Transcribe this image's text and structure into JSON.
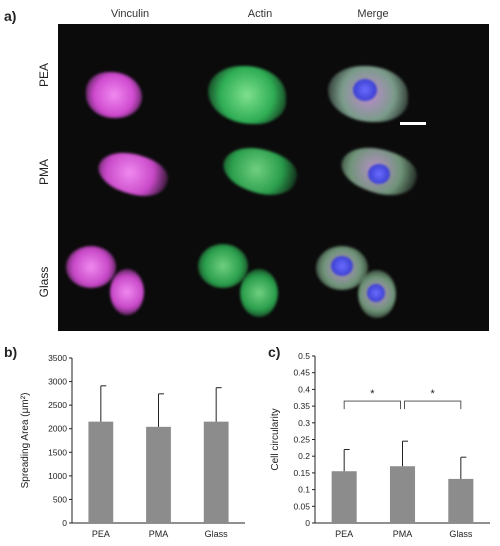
{
  "panel_a": {
    "letter": "a)",
    "columns": [
      "Vinculin",
      "Actin",
      "Merge"
    ],
    "rows": [
      "PEA",
      "PMA",
      "Glass"
    ],
    "colors": {
      "vinculin": "#d84fd8",
      "actin": "#2fbf5a",
      "nucleus": "#4a4cf0",
      "background": "#0b0b0b"
    }
  },
  "panel_b": {
    "letter": "b)"
  },
  "panel_c": {
    "letter": "c)"
  },
  "chart_data": [
    {
      "type": "bar",
      "categories": [
        "PEA",
        "PMA",
        "Glass"
      ],
      "values": [
        2150,
        2040,
        2150
      ],
      "errors": [
        760,
        700,
        720
      ],
      "title": "",
      "xlabel": "",
      "ylabel": "Spreading Area (μm²)",
      "ylim": [
        0,
        3500
      ],
      "yticks": [
        0,
        500,
        1000,
        1500,
        2000,
        2500,
        3000,
        3500
      ],
      "bar_color": "#8c8c8c",
      "grid": false
    },
    {
      "type": "bar",
      "categories": [
        "PEA",
        "PMA",
        "Glass"
      ],
      "values": [
        0.155,
        0.17,
        0.132
      ],
      "errors": [
        0.065,
        0.075,
        0.065
      ],
      "title": "",
      "xlabel": "",
      "ylabel": "Cell circularity",
      "ylim": [
        0,
        0.5
      ],
      "yticks": [
        0,
        0.05,
        0.1,
        0.15,
        0.2,
        0.25,
        0.3,
        0.35,
        0.4,
        0.45,
        0.5
      ],
      "significance": [
        {
          "from": "PEA",
          "to": "PMA",
          "label": "*"
        },
        {
          "from": "PMA",
          "to": "Glass",
          "label": "*"
        }
      ],
      "bar_color": "#8c8c8c",
      "grid": false
    }
  ]
}
